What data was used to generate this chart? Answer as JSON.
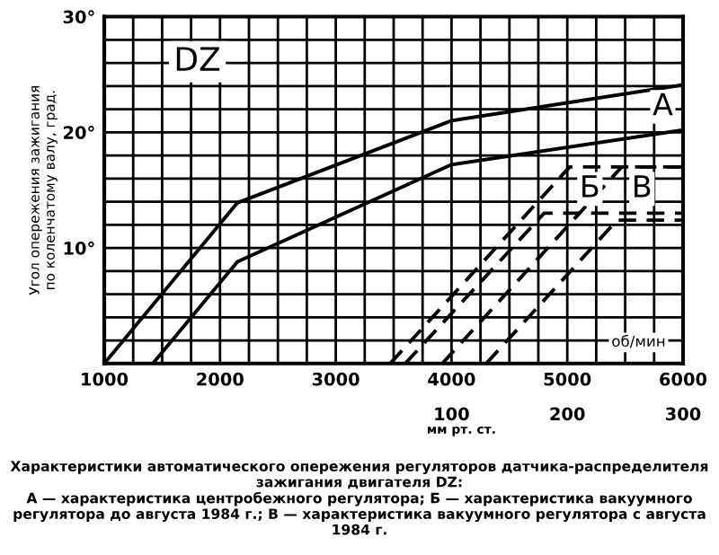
{
  "chart_data": {
    "type": "line",
    "ylabel": "Угол опережения зажигания\nпо коленчатому валу, град.",
    "xlabel": "об/мин",
    "x2label": "мм рт. ст.",
    "xlim": [
      1000,
      6000
    ],
    "xticks": [
      1000,
      {
        "value": 1250,
        "label": null
      },
      {
        "value": 1500,
        "label": null
      },
      {
        "value": 1750,
        "label": null
      },
      2000,
      {
        "value": 2250,
        "label": null
      },
      {
        "value": 2500,
        "label": null
      },
      {
        "value": 2750,
        "label": null
      },
      3000,
      {
        "value": 3250,
        "label": null
      },
      {
        "value": 3500,
        "label": null
      },
      {
        "value": 3750,
        "label": null
      },
      4000,
      {
        "value": 4250,
        "label": null
      },
      {
        "value": 4500,
        "label": null
      },
      {
        "value": 4750,
        "label": null
      },
      5000,
      {
        "value": 5250,
        "label": null
      },
      {
        "value": 5500,
        "label": null
      },
      {
        "value": 5750,
        "label": null
      },
      6000
    ],
    "x2lim": [
      -200,
      300
    ],
    "x2ticks": [
      100,
      200,
      300
    ],
    "ylim": [
      0,
      30
    ],
    "yticks": [
      {
        "value": 0,
        "label": null
      },
      {
        "value": 2,
        "label": null
      },
      {
        "value": 4,
        "label": null
      },
      {
        "value": 6,
        "label": null
      },
      {
        "value": 8,
        "label": null
      },
      {
        "value": 10,
        "label": "10°"
      },
      {
        "value": 12,
        "label": null
      },
      {
        "value": 14,
        "label": null
      },
      {
        "value": 16,
        "label": null
      },
      {
        "value": 18,
        "label": null
      },
      {
        "value": 20,
        "label": "20°"
      },
      {
        "value": 22,
        "label": null
      },
      {
        "value": 24,
        "label": null
      },
      {
        "value": 26,
        "label": null
      },
      {
        "value": 28,
        "label": null
      },
      {
        "value": 30,
        "label": "30°"
      }
    ],
    "grid": true,
    "legend": false,
    "marker": "none",
    "series": [
      {
        "name": "А",
        "color": "#000000",
        "line_style": "solid",
        "x": [
          1000,
          2150,
          4000,
          6000
        ],
        "values": [
          0,
          13.9,
          21.0,
          24.1
        ]
      },
      {
        "color": "#000000",
        "line_style": "solid",
        "x": [
          1420,
          2150,
          4000,
          6000
        ],
        "values": [
          0,
          8.8,
          17.2,
          20.2
        ]
      },
      {
        "name": "Б",
        "color": "#000000",
        "line_style": "dashed",
        "x": [
          3470,
          5020,
          6000
        ],
        "values": [
          0,
          17.0,
          17.0
        ]
      },
      {
        "color": "#000000",
        "line_style": "dashed",
        "x": [
          3600,
          4800,
          6000
        ],
        "values": [
          0,
          13.0,
          13.0
        ]
      },
      {
        "name": "В",
        "color": "#000000",
        "line_style": "dashed",
        "x": [
          3920,
          5470,
          6000
        ],
        "values": [
          0,
          17.0,
          17.0
        ]
      },
      {
        "color": "#000000",
        "line_style": "dashed",
        "x": [
          4300,
          5430,
          6000
        ],
        "values": [
          0,
          12.4,
          12.4
        ]
      }
    ],
    "annotations": [
      "DZ",
      "Характеристики автоматического опережения регуляторов датчика-распределителя зажигания двигателя DZ:\nА — характеристика центробежного регулятора; Б — характеристика вакуумного регулятора до августа 1984 г.; В — характеристика вакуумного регулятора с августа 1984 г."
    ]
  }
}
